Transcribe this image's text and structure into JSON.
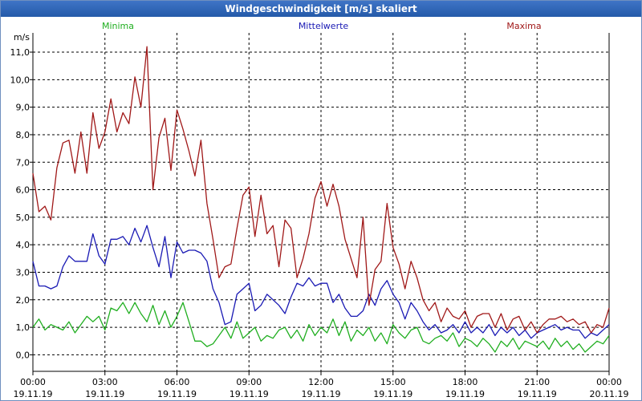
{
  "window": {
    "title": "Windgeschwindigkeit [m/s] skaliert"
  },
  "chart_data": {
    "type": "line",
    "title": "Windgeschwindigkeit [m/s] skaliert",
    "ylabel": "m/s",
    "ylim": [
      -0.6,
      11.7
    ],
    "yticks": [
      0,
      1,
      2,
      3,
      4,
      5,
      6,
      7,
      8,
      9,
      10,
      11
    ],
    "ytick_labels": [
      "0,0",
      "1,0",
      "2,0",
      "3,0",
      "4,0",
      "5,0",
      "6,0",
      "7,0",
      "8,0",
      "9,0",
      "10,0",
      "11,0"
    ],
    "xlim": [
      0,
      24
    ],
    "xticks": [
      0,
      3,
      6,
      9,
      12,
      15,
      18,
      21,
      24
    ],
    "xtick_labels": [
      [
        "00:00",
        "19.11.19"
      ],
      [
        "03:00",
        "19.11.19"
      ],
      [
        "06:00",
        "19.11.19"
      ],
      [
        "09:00",
        "19.11.19"
      ],
      [
        "12:00",
        "19.11.19"
      ],
      [
        "15:00",
        "19.11.19"
      ],
      [
        "18:00",
        "19.11.19"
      ],
      [
        "21:00",
        "19.11.19"
      ],
      [
        "00:00",
        "20.11.19"
      ]
    ],
    "grid": true,
    "legend_position": "top",
    "series": [
      {
        "name": "Minima",
        "color": "#1fae1f",
        "x": [
          0,
          0.25,
          0.5,
          0.75,
          1,
          1.25,
          1.5,
          1.75,
          2,
          2.25,
          2.5,
          2.75,
          3,
          3.25,
          3.5,
          3.75,
          4,
          4.25,
          4.5,
          4.75,
          5,
          5.25,
          5.5,
          5.75,
          6,
          6.25,
          6.5,
          6.75,
          7,
          7.25,
          7.5,
          7.75,
          8,
          8.25,
          8.5,
          8.75,
          9,
          9.25,
          9.5,
          9.75,
          10,
          10.25,
          10.5,
          10.75,
          11,
          11.25,
          11.5,
          11.75,
          12,
          12.25,
          12.5,
          12.75,
          13,
          13.25,
          13.5,
          13.75,
          14,
          14.25,
          14.5,
          14.75,
          15,
          15.25,
          15.5,
          15.75,
          16,
          16.25,
          16.5,
          16.75,
          17,
          17.25,
          17.5,
          17.75,
          18,
          18.25,
          18.5,
          18.75,
          19,
          19.25,
          19.5,
          19.75,
          20,
          20.25,
          20.5,
          20.75,
          21,
          21.25,
          21.5,
          21.75,
          22,
          22.25,
          22.5,
          22.75,
          23,
          23.25,
          23.5,
          23.75,
          24
        ],
        "values": [
          1.0,
          1.3,
          0.9,
          1.1,
          1.0,
          0.9,
          1.2,
          0.8,
          1.1,
          1.4,
          1.2,
          1.4,
          0.9,
          1.7,
          1.6,
          1.9,
          1.5,
          1.9,
          1.5,
          1.2,
          1.8,
          1.1,
          1.6,
          1.0,
          1.4,
          1.9,
          1.2,
          0.5,
          0.5,
          0.3,
          0.4,
          0.7,
          1.0,
          0.6,
          1.2,
          0.6,
          0.8,
          1.0,
          0.5,
          0.7,
          0.6,
          0.9,
          1.0,
          0.6,
          0.9,
          0.5,
          1.1,
          0.7,
          1.0,
          0.8,
          1.3,
          0.7,
          1.2,
          0.5,
          0.9,
          0.7,
          1.0,
          0.5,
          0.8,
          0.4,
          1.1,
          0.8,
          0.6,
          0.9,
          1.0,
          0.5,
          0.4,
          0.6,
          0.7,
          0.5,
          0.8,
          0.3,
          0.6,
          0.5,
          0.3,
          0.6,
          0.4,
          0.1,
          0.5,
          0.3,
          0.6,
          0.2,
          0.5,
          0.4,
          0.3,
          0.5,
          0.2,
          0.6,
          0.3,
          0.5,
          0.2,
          0.4,
          0.1,
          0.3,
          0.5,
          0.4,
          0.7
        ]
      },
      {
        "name": "Mittelwerte",
        "color": "#1a1ab4",
        "x": [
          0,
          0.25,
          0.5,
          0.75,
          1,
          1.25,
          1.5,
          1.75,
          2,
          2.25,
          2.5,
          2.75,
          3,
          3.25,
          3.5,
          3.75,
          4,
          4.25,
          4.5,
          4.75,
          5,
          5.25,
          5.5,
          5.75,
          6,
          6.25,
          6.5,
          6.75,
          7,
          7.25,
          7.5,
          7.75,
          8,
          8.25,
          8.5,
          8.75,
          9,
          9.25,
          9.5,
          9.75,
          10,
          10.25,
          10.5,
          10.75,
          11,
          11.25,
          11.5,
          11.75,
          12,
          12.25,
          12.5,
          12.75,
          13,
          13.25,
          13.5,
          13.75,
          14,
          14.25,
          14.5,
          14.75,
          15,
          15.25,
          15.5,
          15.75,
          16,
          16.25,
          16.5,
          16.75,
          17,
          17.25,
          17.5,
          17.75,
          18,
          18.25,
          18.5,
          18.75,
          19,
          19.25,
          19.5,
          19.75,
          20,
          20.25,
          20.5,
          20.75,
          21,
          21.25,
          21.5,
          21.75,
          22,
          22.25,
          22.5,
          22.75,
          23,
          23.25,
          23.5,
          23.75,
          24
        ],
        "values": [
          3.4,
          2.5,
          2.5,
          2.4,
          2.5,
          3.2,
          3.6,
          3.4,
          3.4,
          3.4,
          4.4,
          3.6,
          3.3,
          4.2,
          4.2,
          4.3,
          4.0,
          4.6,
          4.1,
          4.7,
          3.9,
          3.2,
          4.3,
          2.8,
          4.1,
          3.7,
          3.8,
          3.8,
          3.7,
          3.4,
          2.4,
          1.9,
          1.1,
          1.2,
          2.2,
          2.4,
          2.6,
          1.6,
          1.8,
          2.2,
          2.0,
          1.8,
          1.5,
          2.1,
          2.6,
          2.5,
          2.8,
          2.5,
          2.6,
          2.6,
          1.9,
          2.2,
          1.7,
          1.4,
          1.4,
          1.6,
          2.2,
          1.8,
          2.4,
          2.7,
          2.2,
          1.9,
          1.3,
          1.9,
          1.6,
          1.2,
          0.9,
          1.1,
          0.8,
          0.9,
          1.1,
          0.8,
          1.2,
          0.8,
          1.0,
          0.8,
          1.1,
          0.7,
          1.0,
          0.8,
          1.0,
          0.7,
          0.9,
          0.6,
          0.8,
          0.9,
          1.0,
          1.1,
          0.9,
          1.0,
          0.9,
          0.9,
          0.6,
          0.8,
          0.7,
          0.9,
          1.1
        ]
      },
      {
        "name": "Maxima",
        "color": "#a01818",
        "x": [
          0,
          0.25,
          0.5,
          0.75,
          1,
          1.25,
          1.5,
          1.75,
          2,
          2.25,
          2.5,
          2.75,
          3,
          3.25,
          3.5,
          3.75,
          4,
          4.25,
          4.5,
          4.75,
          5,
          5.25,
          5.5,
          5.75,
          6,
          6.25,
          6.5,
          6.75,
          7,
          7.25,
          7.5,
          7.75,
          8,
          8.25,
          8.5,
          8.75,
          9,
          9.25,
          9.5,
          9.75,
          10,
          10.25,
          10.5,
          10.75,
          11,
          11.25,
          11.5,
          11.75,
          12,
          12.25,
          12.5,
          12.75,
          13,
          13.25,
          13.5,
          13.75,
          14,
          14.25,
          14.5,
          14.75,
          15,
          15.25,
          15.5,
          15.75,
          16,
          16.25,
          16.5,
          16.75,
          17,
          17.25,
          17.5,
          17.75,
          18,
          18.25,
          18.5,
          18.75,
          19,
          19.25,
          19.5,
          19.75,
          20,
          20.25,
          20.5,
          20.75,
          21,
          21.25,
          21.5,
          21.75,
          22,
          22.25,
          22.5,
          22.75,
          23,
          23.25,
          23.5,
          23.75,
          24
        ],
        "values": [
          6.6,
          5.2,
          5.4,
          4.9,
          6.8,
          7.7,
          7.8,
          6.6,
          8.1,
          6.6,
          8.8,
          7.5,
          8.1,
          9.3,
          8.1,
          8.8,
          8.4,
          10.1,
          9.0,
          11.2,
          6.0,
          7.9,
          8.6,
          6.7,
          8.9,
          8.2,
          7.4,
          6.5,
          7.8,
          5.5,
          4.2,
          2.8,
          3.2,
          3.3,
          4.6,
          5.8,
          6.1,
          4.3,
          5.8,
          4.4,
          4.7,
          3.2,
          4.9,
          4.6,
          2.8,
          3.5,
          4.4,
          5.7,
          6.3,
          5.4,
          6.2,
          5.4,
          4.2,
          3.5,
          2.8,
          5.0,
          1.8,
          3.1,
          3.4,
          5.5,
          3.9,
          3.3,
          2.4,
          3.4,
          2.8,
          2.0,
          1.6,
          1.9,
          1.2,
          1.7,
          1.4,
          1.3,
          1.6,
          1.0,
          1.4,
          1.5,
          1.5,
          1.0,
          1.5,
          0.9,
          1.3,
          1.4,
          0.9,
          1.2,
          0.8,
          1.1,
          1.3,
          1.3,
          1.4,
          1.2,
          1.3,
          1.1,
          1.2,
          0.8,
          1.1,
          1.0,
          1.7
        ]
      }
    ]
  }
}
